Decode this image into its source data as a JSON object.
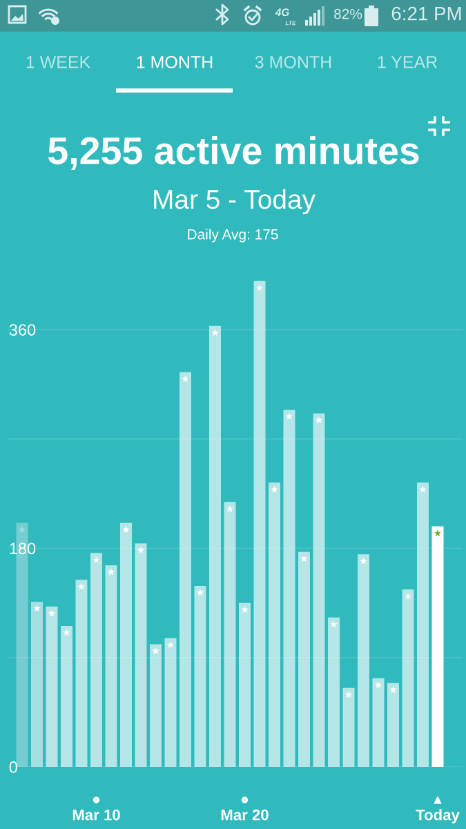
{
  "chart_data": {
    "type": "bar",
    "title": "5,255 active minutes",
    "subtitle": "Mar 5 - Today",
    "annotations": [
      "4G",
      "LTE",
      "82%",
      "6:21 PM",
      "1 WEEK",
      "1 MONTH",
      "3 MONTH",
      "1 YEAR",
      "Daily Avg: 175"
    ],
    "categories": [
      null,
      null,
      null,
      null,
      null,
      "Mar 10",
      null,
      null,
      null,
      null,
      null,
      null,
      null,
      null,
      null,
      "Mar 20",
      null,
      null,
      null,
      null,
      null,
      null,
      null,
      null,
      null,
      null,
      null,
      null,
      "Today"
    ],
    "values": [
      201,
      136,
      132,
      116,
      154,
      176,
      166,
      201,
      184,
      101,
      106,
      325,
      149,
      363,
      218,
      135,
      400,
      234,
      294,
      177,
      291,
      123,
      65,
      175,
      73,
      69,
      146,
      234,
      198
    ],
    "colors": [
      "#74cdd0",
      "#a3dfe1",
      "#b4e5e7",
      "#b4e5e7",
      "#b4e5e7",
      "#b4e5e7",
      "#b4e5e7",
      "#b4e5e7",
      "#b4e5e7",
      "#b4e5e7",
      "#b4e5e7",
      "#b4e5e7",
      "#b4e5e7",
      "#b4e5e7",
      "#b4e5e7",
      "#b4e5e7",
      "#b4e5e7",
      "#b4e5e7",
      "#b4e5e7",
      "#b4e5e7",
      "#b4e5e7",
      "#b4e5e7",
      "#b4e5e7",
      "#b4e5e7",
      "#b4e5e7",
      "#b4e5e7",
      "#b4e5e7",
      "#b4e5e7",
      "#ffffff"
    ],
    "ylim": [
      0,
      405
    ],
    "yticks": [
      0,
      {
        "value": 90,
        "label": null
      },
      180,
      {
        "value": 270,
        "label": null
      },
      360
    ],
    "grid": "y"
  }
}
